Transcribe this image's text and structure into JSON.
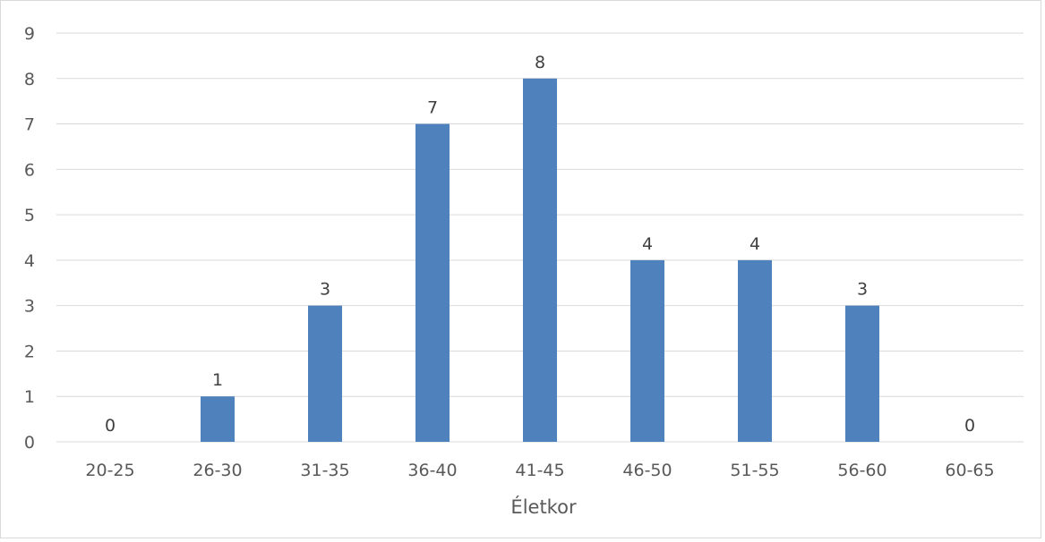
{
  "chart_data": {
    "type": "bar",
    "title": "",
    "xlabel": "Életkor",
    "ylabel": "",
    "categories": [
      "20-25",
      "26-30",
      "31-35",
      "36-40",
      "41-45",
      "46-50",
      "51-55",
      "56-60",
      "60-65"
    ],
    "values": [
      0,
      1,
      3,
      7,
      8,
      4,
      4,
      3,
      0
    ],
    "ylim": [
      0,
      9
    ],
    "yticks": [
      0,
      1,
      2,
      3,
      4,
      5,
      6,
      7,
      8,
      9
    ],
    "grid": true,
    "legend": "none",
    "data_labels": true,
    "bar_color": "#4f81bd",
    "gridline_color": "#d9d9d9",
    "text_color": "#595959"
  }
}
